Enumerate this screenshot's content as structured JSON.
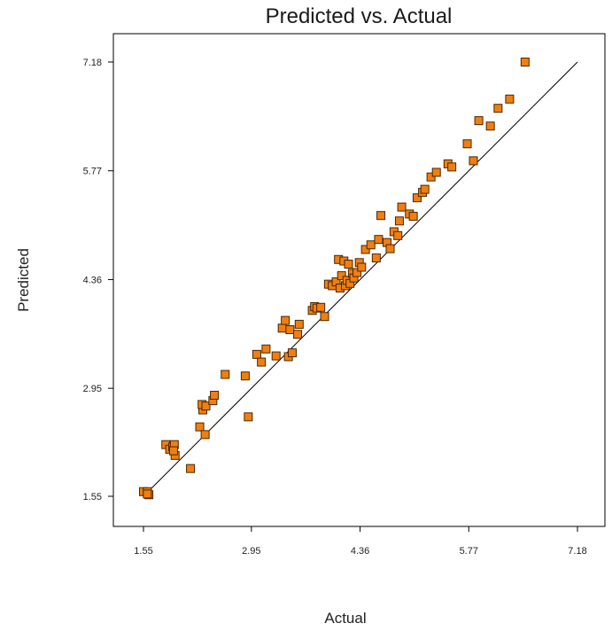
{
  "chart_data": {
    "type": "scatter",
    "title": "Predicted vs. Actual",
    "xlabel": "Actual",
    "ylabel": "Predicted",
    "xlim": [
      1.55,
      7.18
    ],
    "ylim": [
      1.55,
      7.18
    ],
    "x_tick_labels": [
      "1.55",
      "2.95",
      "4.36",
      "5.77",
      "7.18"
    ],
    "y_tick_labels": [
      "1.55",
      "2.95",
      "4.36",
      "5.77",
      "7.18"
    ],
    "grid": false,
    "reference_line": {
      "type": "y=x"
    },
    "marker_color": "#f07f12",
    "marker_edge_color": "#4a2600",
    "marker_shape": "square",
    "points": [
      [
        1.55,
        1.61
      ],
      [
        1.6,
        1.61
      ],
      [
        1.62,
        1.57
      ],
      [
        1.6,
        1.58
      ],
      [
        1.84,
        2.22
      ],
      [
        1.89,
        2.16
      ],
      [
        1.93,
        2.19
      ],
      [
        1.95,
        2.22
      ],
      [
        1.96,
        2.08
      ],
      [
        1.94,
        2.14
      ],
      [
        2.16,
        1.91
      ],
      [
        2.28,
        2.45
      ],
      [
        2.32,
        2.67
      ],
      [
        2.31,
        2.74
      ],
      [
        2.36,
        2.72
      ],
      [
        2.35,
        2.35
      ],
      [
        2.45,
        2.79
      ],
      [
        2.47,
        2.86
      ],
      [
        2.61,
        3.13
      ],
      [
        2.91,
        2.58
      ],
      [
        2.87,
        3.11
      ],
      [
        3.02,
        3.39
      ],
      [
        3.08,
        3.29
      ],
      [
        3.14,
        3.46
      ],
      [
        3.27,
        3.37
      ],
      [
        3.35,
        3.73
      ],
      [
        3.39,
        3.83
      ],
      [
        3.43,
        3.36
      ],
      [
        3.45,
        3.71
      ],
      [
        3.48,
        3.41
      ],
      [
        3.57,
        3.78
      ],
      [
        3.55,
        3.65
      ],
      [
        3.74,
        3.96
      ],
      [
        3.77,
        4.01
      ],
      [
        3.8,
        3.99
      ],
      [
        3.85,
        4.0
      ],
      [
        3.9,
        3.88
      ],
      [
        3.95,
        4.3
      ],
      [
        4.0,
        4.28
      ],
      [
        4.05,
        4.33
      ],
      [
        4.08,
        4.62
      ],
      [
        4.1,
        4.25
      ],
      [
        4.12,
        4.41
      ],
      [
        4.15,
        4.6
      ],
      [
        4.17,
        4.28
      ],
      [
        4.19,
        4.35
      ],
      [
        4.21,
        4.56
      ],
      [
        4.23,
        4.31
      ],
      [
        4.26,
        4.44
      ],
      [
        4.28,
        4.38
      ],
      [
        4.32,
        4.45
      ],
      [
        4.35,
        4.58
      ],
      [
        4.38,
        4.52
      ],
      [
        4.43,
        4.75
      ],
      [
        4.5,
        4.81
      ],
      [
        4.57,
        4.64
      ],
      [
        4.6,
        4.88
      ],
      [
        4.63,
        5.19
      ],
      [
        4.71,
        4.84
      ],
      [
        4.75,
        4.76
      ],
      [
        4.8,
        4.98
      ],
      [
        4.85,
        4.93
      ],
      [
        4.87,
        5.12
      ],
      [
        4.9,
        5.3
      ],
      [
        5.0,
        5.21
      ],
      [
        5.05,
        5.18
      ],
      [
        5.1,
        5.42
      ],
      [
        5.17,
        5.49
      ],
      [
        5.2,
        5.53
      ],
      [
        5.28,
        5.69
      ],
      [
        5.35,
        5.75
      ],
      [
        5.5,
        5.86
      ],
      [
        5.55,
        5.82
      ],
      [
        5.75,
        6.12
      ],
      [
        5.83,
        5.9
      ],
      [
        5.9,
        6.42
      ],
      [
        6.05,
        6.35
      ],
      [
        6.15,
        6.58
      ],
      [
        6.3,
        6.7
      ],
      [
        6.5,
        7.18
      ]
    ]
  }
}
